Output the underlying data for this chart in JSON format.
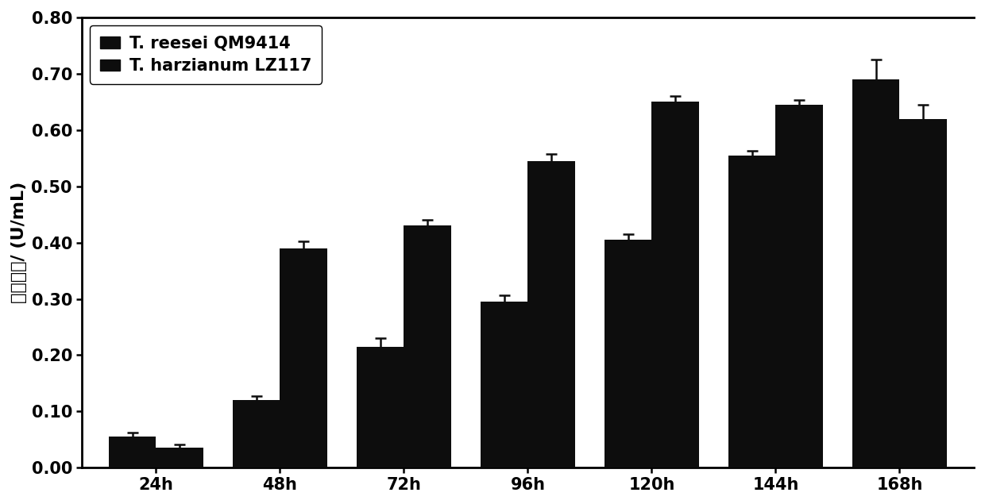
{
  "time_labels": [
    "24h",
    "48h",
    "72h",
    "96h",
    "120h",
    "144h",
    "168h"
  ],
  "reesei_values": [
    0.055,
    0.12,
    0.215,
    0.295,
    0.405,
    0.555,
    0.69
  ],
  "reesei_errors": [
    0.008,
    0.008,
    0.015,
    0.012,
    0.01,
    0.008,
    0.035
  ],
  "harzianum_values": [
    0.035,
    0.39,
    0.43,
    0.545,
    0.65,
    0.645,
    0.62
  ],
  "harzianum_errors": [
    0.007,
    0.012,
    0.01,
    0.012,
    0.01,
    0.008,
    0.025
  ],
  "bar_color": "#0d0d0d",
  "bar_width": 0.38,
  "ylabel": "滤纸酶活/ (U/mL)",
  "ylim": [
    0.0,
    0.8
  ],
  "yticks": [
    0.0,
    0.1,
    0.2,
    0.3,
    0.4,
    0.5,
    0.6,
    0.7,
    0.8
  ],
  "legend_label1": "T. reesei QM9414",
  "legend_label2": "T. harzianum LZ117",
  "background_color": "#ffffff",
  "label_fontsize": 16,
  "tick_fontsize": 15,
  "legend_fontsize": 15
}
